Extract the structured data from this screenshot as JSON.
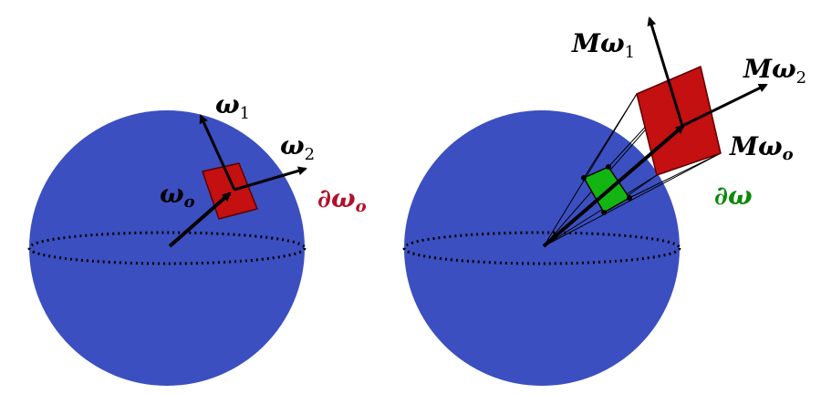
{
  "colors": {
    "sphere": "#3b4fc0",
    "patch_red": "#c41010",
    "patch_green": "#12b512",
    "label_red": "#b0102a",
    "label_green": "#0a8a0a",
    "ink": "#000000"
  },
  "left_panel": {
    "omega_1": {
      "base": "ω",
      "sub": "1"
    },
    "omega_2": {
      "base": "ω",
      "sub": "2"
    },
    "omega_o": {
      "base": "ω",
      "sub": "o"
    },
    "boundary": {
      "prefix": "∂",
      "base": "ω",
      "sub": "o"
    }
  },
  "right_panel": {
    "m_omega_1": {
      "prefix": "M",
      "base": "ω",
      "sub": "1"
    },
    "m_omega_2": {
      "prefix": "M",
      "base": "ω",
      "sub": "2"
    },
    "m_omega_o": {
      "prefix": "M",
      "base": "ω",
      "sub": "o"
    },
    "boundary": {
      "prefix": "∂",
      "base": "ω"
    }
  }
}
